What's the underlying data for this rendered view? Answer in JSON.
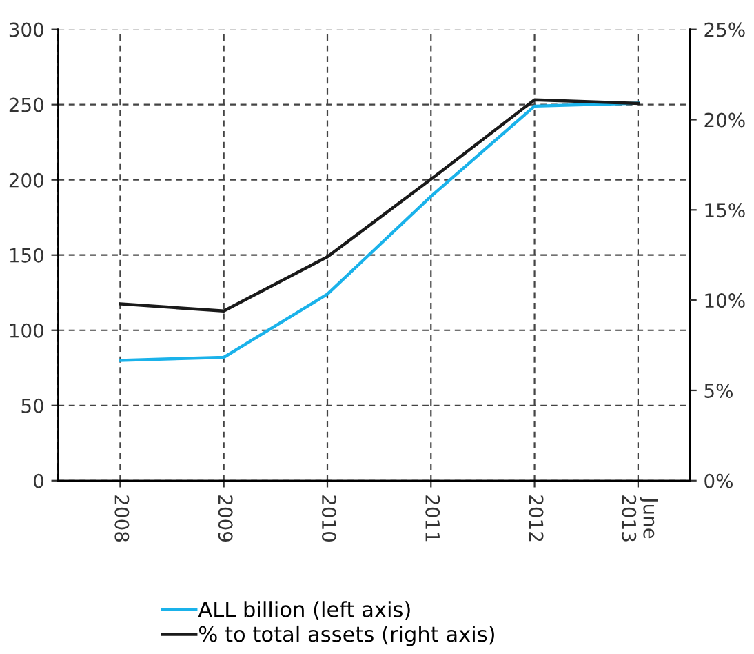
{
  "chart_data": {
    "type": "line",
    "categories": [
      "2008",
      "2009",
      "2010",
      "2011",
      "2012",
      "June\n2013"
    ],
    "series": [
      {
        "name": "ALL billion (left axis)",
        "color": "#1ab2ea",
        "values": [
          80,
          82,
          124,
          189,
          249,
          251
        ]
      },
      {
        "name": "% to total assets (right axis)",
        "color": "#1a1a1a",
        "values": [
          9.8,
          9.4,
          12.4,
          16.7,
          21.1,
          20.9
        ],
        "axis": "y2"
      }
    ],
    "ylim": [
      0,
      300
    ],
    "yticks": [
      0,
      50,
      100,
      150,
      200,
      250,
      300
    ],
    "y2lim": [
      0,
      25
    ],
    "y2ticks": [
      {
        "value": 0,
        "label": "0%"
      },
      {
        "value": 5,
        "label": "5%"
      },
      {
        "value": 10,
        "label": "10%"
      },
      {
        "value": 15,
        "label": "15%"
      },
      {
        "value": 20,
        "label": "20%"
      },
      {
        "value": 25,
        "label": "25%"
      }
    ],
    "grid": true,
    "legend": "bottom",
    "marker": "none",
    "line_style": "solid"
  }
}
